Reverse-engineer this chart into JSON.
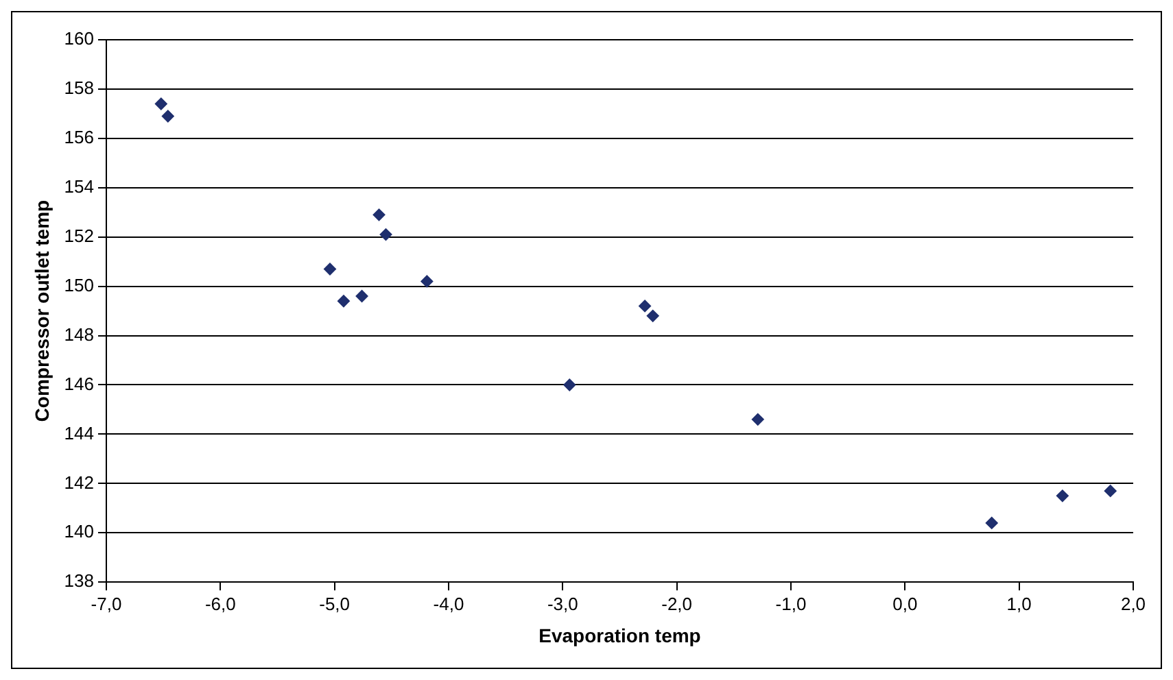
{
  "chart_data": {
    "type": "scatter",
    "xlabel": "Evaporation temp",
    "ylabel": "Compressor outlet temp",
    "x": [
      -6.52,
      -6.46,
      -4.61,
      -4.55,
      -5.04,
      -4.92,
      -4.76,
      -4.19,
      -2.28,
      -2.21,
      -2.94,
      -1.29,
      0.76,
      1.38,
      1.8
    ],
    "series": [
      {
        "color": "#1f2f6e",
        "values": [
          157.4,
          156.9,
          152.9,
          152.1,
          150.7,
          149.4,
          149.6,
          150.2,
          149.2,
          148.8,
          146.0,
          144.6,
          140.4,
          141.5,
          141.7
        ]
      }
    ],
    "xlim": [
      -7,
      2
    ],
    "xticks": [
      {
        "value": -7,
        "label": "-7,0"
      },
      {
        "value": -6,
        "label": "-6,0"
      },
      {
        "value": -5,
        "label": "-5,0"
      },
      {
        "value": -4,
        "label": "-4,0"
      },
      {
        "value": -3,
        "label": "-3,0"
      },
      {
        "value": -2,
        "label": "-2,0"
      },
      {
        "value": -1,
        "label": "-1,0"
      },
      {
        "value": 0,
        "label": "0,0"
      },
      {
        "value": 1,
        "label": "1,0"
      },
      {
        "value": 2,
        "label": "2,0"
      }
    ],
    "ylim": [
      138,
      160
    ],
    "yticks": [
      138,
      140,
      142,
      144,
      146,
      148,
      150,
      152,
      154,
      156,
      158,
      160
    ],
    "grid": "y",
    "legend": false,
    "marker": "diamond"
  }
}
